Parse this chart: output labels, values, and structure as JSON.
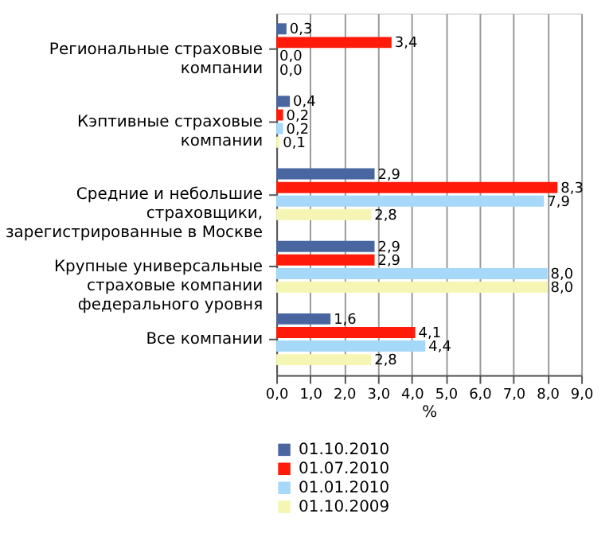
{
  "chart_data": {
    "type": "bar",
    "orientation": "horizontal",
    "xlabel": "%",
    "categories": [
      "Региональные страховые компании",
      "Кэптивные страховые компании",
      "Средние и небольшие страховщики, зарегистрированные в Москве",
      "Крупные универсальные страховые компании федерального уровня",
      "Все компании"
    ],
    "series": [
      {
        "name": "01.10.2010",
        "color": "#4a66a0",
        "values": [
          0.3,
          0.4,
          2.9,
          2.9,
          1.6
        ],
        "value_labels": [
          "0,3",
          "0,4",
          "2,9",
          "2,9",
          "1,6"
        ]
      },
      {
        "name": "01.07.2010",
        "color": "#ff1a0a",
        "values": [
          3.4,
          0.2,
          8.3,
          2.9,
          4.1
        ],
        "value_labels": [
          "3,4",
          "0,2",
          "8,3",
          "2,9",
          "4,1"
        ]
      },
      {
        "name": "01.01.2010",
        "color": "#a6d8fa",
        "values": [
          0.0,
          0.2,
          7.9,
          8.0,
          4.4
        ],
        "value_labels": [
          "0,0",
          "0,2",
          "7,9",
          "8,0",
          "4,4"
        ]
      },
      {
        "name": "01.10.2009",
        "color": "#f6f6b4",
        "values": [
          0.0,
          0.1,
          2.8,
          8.0,
          2.8
        ],
        "value_labels": [
          "0,0",
          "0,1",
          "2,8",
          "8,0",
          "2,8"
        ]
      }
    ],
    "xlim": [
      0,
      9
    ],
    "xticks": [
      {
        "value": 0,
        "label": "0,0"
      },
      {
        "value": 1,
        "label": "1,0"
      },
      {
        "value": 2,
        "label": "2,0"
      },
      {
        "value": 3,
        "label": "3,0"
      },
      {
        "value": 4,
        "label": "4,0"
      },
      {
        "value": 5,
        "label": "5,0"
      },
      {
        "value": 6,
        "label": "6,0"
      },
      {
        "value": 7,
        "label": "7,0"
      },
      {
        "value": 8,
        "label": "8,0"
      },
      {
        "value": 9,
        "label": "9,0"
      }
    ],
    "grid": "x",
    "legend": "bottom"
  }
}
